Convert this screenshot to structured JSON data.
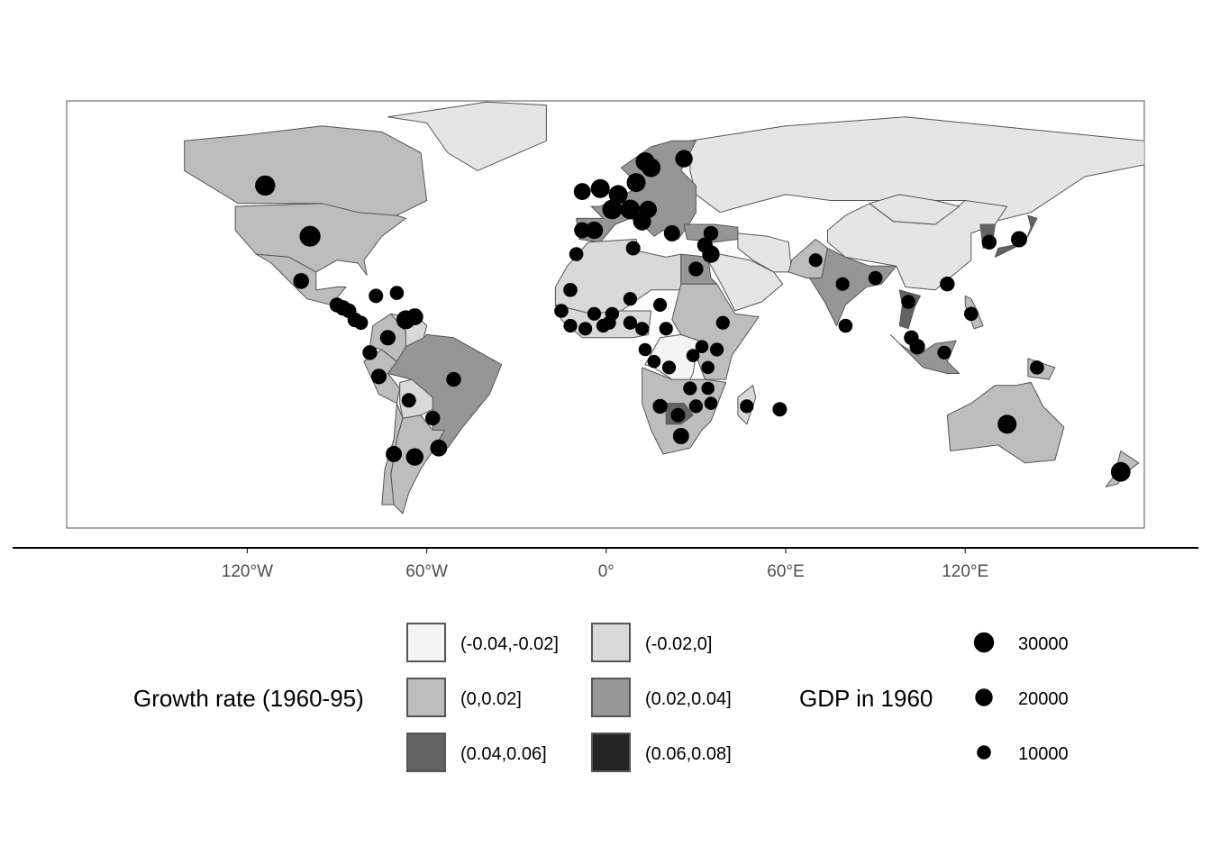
{
  "chart_data": {
    "type": "map",
    "projection": "equirectangular",
    "x_axis": {
      "ticks": [
        {
          "lon": -120,
          "label": "120°W"
        },
        {
          "lon": -60,
          "label": "60°W"
        },
        {
          "lon": 0,
          "label": "0°"
        },
        {
          "lon": 60,
          "label": "60°E"
        },
        {
          "lon": 120,
          "label": "120°E"
        }
      ]
    },
    "fill_legend": {
      "title": "Growth rate (1960-95)",
      "classes": [
        {
          "label": "(-0.04,-0.02]",
          "color": "#f4f4f4"
        },
        {
          "label": "(-0.02,0]",
          "color": "#d9d9d9"
        },
        {
          "label": "(0,0.02]",
          "color": "#bdbdbd"
        },
        {
          "label": "(0.02,0.04]",
          "color": "#969696"
        },
        {
          "label": "(0.04,0.06]",
          "color": "#636363"
        },
        {
          "label": "(0.06,0.08]",
          "color": "#252525"
        }
      ],
      "no_data_color": "#e5e5e5"
    },
    "size_legend": {
      "title": "GDP in 1960",
      "entries": [
        {
          "label": "30000",
          "value": 30000
        },
        {
          "label": "20000",
          "value": 20000
        },
        {
          "label": "10000",
          "value": 10000
        }
      ]
    },
    "regions": [
      {
        "name": "Russia",
        "growth_class": null
      },
      {
        "name": "Canada",
        "growth_class": "(0,0.02]"
      },
      {
        "name": "United States",
        "growth_class": "(0,0.02]"
      },
      {
        "name": "Mexico",
        "growth_class": "(0,0.02]"
      },
      {
        "name": "Brazil",
        "growth_class": "(0.02,0.04]"
      },
      {
        "name": "Argentina",
        "growth_class": "(0,0.02]"
      },
      {
        "name": "Bolivia",
        "growth_class": "(-0.02,0]"
      },
      {
        "name": "Peru",
        "growth_class": "(0,0.02]"
      },
      {
        "name": "Colombia",
        "growth_class": "(0,0.02]"
      },
      {
        "name": "Venezuela",
        "growth_class": "(-0.02,0]"
      },
      {
        "name": "Chile",
        "growth_class": "(0,0.02]"
      },
      {
        "name": "Greenland",
        "growth_class": null
      },
      {
        "name": "Western Europe",
        "growth_class": "(0.02,0.04]"
      },
      {
        "name": "North Africa",
        "growth_class": "(-0.02,0]"
      },
      {
        "name": "West Africa",
        "growth_class": "(-0.02,0]"
      },
      {
        "name": "Egypt",
        "growth_class": "(0.02,0.04]"
      },
      {
        "name": "Congo (DRC)",
        "growth_class": "(-0.04,-0.02]"
      },
      {
        "name": "East Africa",
        "growth_class": "(0,0.02]"
      },
      {
        "name": "Southern Africa",
        "growth_class": "(0,0.02]"
      },
      {
        "name": "Botswana",
        "growth_class": "(0.04,0.06]"
      },
      {
        "name": "Madagascar",
        "growth_class": "(-0.02,0]"
      },
      {
        "name": "Arabian Peninsula",
        "growth_class": null
      },
      {
        "name": "Turkey",
        "growth_class": "(0.02,0.04]"
      },
      {
        "name": "Iran",
        "growth_class": null
      },
      {
        "name": "Pakistan",
        "growth_class": "(0,0.02]"
      },
      {
        "name": "India",
        "growth_class": "(0.02,0.04]"
      },
      {
        "name": "China",
        "growth_class": null
      },
      {
        "name": "Mongolia",
        "growth_class": null
      },
      {
        "name": "Thailand",
        "growth_class": "(0.04,0.06]"
      },
      {
        "name": "Japan",
        "growth_class": "(0.04,0.06]"
      },
      {
        "name": "Korea",
        "growth_class": "(0.04,0.06]"
      },
      {
        "name": "Indonesia",
        "growth_class": "(0.02,0.04]"
      },
      {
        "name": "Philippines",
        "growth_class": "(0,0.02]"
      },
      {
        "name": "Papua New Guinea",
        "growth_class": "(0,0.02]"
      },
      {
        "name": "Australia",
        "growth_class": "(0,0.02]"
      },
      {
        "name": "New Zealand",
        "growth_class": "(0,0.02]"
      }
    ],
    "points": [
      {
        "lon": -114,
        "lat": 55,
        "gdp": 30000
      },
      {
        "lon": -99,
        "lat": 38,
        "gdp": 33000
      },
      {
        "lon": -102,
        "lat": 23,
        "gdp": 15000
      },
      {
        "lon": -90,
        "lat": 15,
        "gdp": 12000
      },
      {
        "lon": -88,
        "lat": 14,
        "gdp": 14000
      },
      {
        "lon": -86,
        "lat": 13,
        "gdp": 12000
      },
      {
        "lon": -84,
        "lat": 10,
        "gdp": 12000
      },
      {
        "lon": -82,
        "lat": 9,
        "gdp": 10000
      },
      {
        "lon": -77,
        "lat": 18,
        "gdp": 11000
      },
      {
        "lon": -70,
        "lat": 19,
        "gdp": 10000
      },
      {
        "lon": -67,
        "lat": 10,
        "gdp": 25000
      },
      {
        "lon": -64,
        "lat": 11,
        "gdp": 18000
      },
      {
        "lon": -73,
        "lat": 4,
        "gdp": 14000
      },
      {
        "lon": -79,
        "lat": -1,
        "gdp": 12000
      },
      {
        "lon": -76,
        "lat": -9,
        "gdp": 14000
      },
      {
        "lon": -66,
        "lat": -17,
        "gdp": 11000
      },
      {
        "lon": -58,
        "lat": -23,
        "gdp": 12000
      },
      {
        "lon": -51,
        "lat": -10,
        "gdp": 12000
      },
      {
        "lon": -56,
        "lat": -33,
        "gdp": 18000
      },
      {
        "lon": -71,
        "lat": -35,
        "gdp": 16000
      },
      {
        "lon": -64,
        "lat": -36,
        "gdp": 20000
      },
      {
        "lon": -8,
        "lat": 53,
        "gdp": 18000
      },
      {
        "lon": -2,
        "lat": 54,
        "gdp": 25000
      },
      {
        "lon": 4,
        "lat": 52,
        "gdp": 25000
      },
      {
        "lon": 2,
        "lat": 47,
        "gdp": 28000
      },
      {
        "lon": 8,
        "lat": 47,
        "gdp": 28000
      },
      {
        "lon": 10,
        "lat": 56,
        "gdp": 25000
      },
      {
        "lon": 13,
        "lat": 63,
        "gdp": 25000
      },
      {
        "lon": 15,
        "lat": 61,
        "gdp": 25000
      },
      {
        "lon": 26,
        "lat": 64,
        "gdp": 20000
      },
      {
        "lon": 14,
        "lat": 47,
        "gdp": 20000
      },
      {
        "lon": 12,
        "lat": 43,
        "gdp": 22000
      },
      {
        "lon": -8,
        "lat": 40,
        "gdp": 16000
      },
      {
        "lon": -4,
        "lat": 40,
        "gdp": 20000
      },
      {
        "lon": 22,
        "lat": 39,
        "gdp": 16000
      },
      {
        "lon": 35,
        "lat": 39,
        "gdp": 12000
      },
      {
        "lon": 35,
        "lat": 32,
        "gdp": 20000
      },
      {
        "lon": 33,
        "lat": 35,
        "gdp": 14000
      },
      {
        "lon": 9,
        "lat": 34,
        "gdp": 11000
      },
      {
        "lon": -10,
        "lat": 32,
        "gdp": 10000
      },
      {
        "lon": 30,
        "lat": 27,
        "gdp": 12000
      },
      {
        "lon": -12,
        "lat": 20,
        "gdp": 10000
      },
      {
        "lon": -15,
        "lat": 13,
        "gdp": 10000
      },
      {
        "lon": -12,
        "lat": 8,
        "gdp": 9000
      },
      {
        "lon": -7,
        "lat": 7,
        "gdp": 9000
      },
      {
        "lon": -4,
        "lat": 12,
        "gdp": 9000
      },
      {
        "lon": -1,
        "lat": 8,
        "gdp": 9000
      },
      {
        "lon": 1,
        "lat": 9,
        "gdp": 9000
      },
      {
        "lon": 2,
        "lat": 12,
        "gdp": 9000
      },
      {
        "lon": 8,
        "lat": 17,
        "gdp": 9000
      },
      {
        "lon": 8,
        "lat": 9,
        "gdp": 9000
      },
      {
        "lon": 12,
        "lat": 7,
        "gdp": 9000
      },
      {
        "lon": 18,
        "lat": 15,
        "gdp": 9000
      },
      {
        "lon": 13,
        "lat": 0,
        "gdp": 8000
      },
      {
        "lon": 21,
        "lat": -6,
        "gdp": 9000
      },
      {
        "lon": 20,
        "lat": 7,
        "gdp": 9000
      },
      {
        "lon": 16,
        "lat": -4,
        "gdp": 8000
      },
      {
        "lon": 32,
        "lat": 1,
        "gdp": 8000
      },
      {
        "lon": 29,
        "lat": -2,
        "gdp": 8000
      },
      {
        "lon": 34,
        "lat": -6,
        "gdp": 8000
      },
      {
        "lon": 37,
        "lat": 0,
        "gdp": 9000
      },
      {
        "lon": 39,
        "lat": 9,
        "gdp": 9000
      },
      {
        "lon": 28,
        "lat": -13,
        "gdp": 9000
      },
      {
        "lon": 34,
        "lat": -13,
        "gdp": 8000
      },
      {
        "lon": 18,
        "lat": -19,
        "gdp": 12000
      },
      {
        "lon": 24,
        "lat": -22,
        "gdp": 11000
      },
      {
        "lon": 30,
        "lat": -19,
        "gdp": 9000
      },
      {
        "lon": 35,
        "lat": -18,
        "gdp": 8000
      },
      {
        "lon": 25,
        "lat": -29,
        "gdp": 16000
      },
      {
        "lon": 47,
        "lat": -19,
        "gdp": 9000
      },
      {
        "lon": 58,
        "lat": -20,
        "gdp": 11000
      },
      {
        "lon": 70,
        "lat": 30,
        "gdp": 9000
      },
      {
        "lon": 79,
        "lat": 22,
        "gdp": 9000
      },
      {
        "lon": 90,
        "lat": 24,
        "gdp": 10000
      },
      {
        "lon": 80,
        "lat": 8,
        "gdp": 10000
      },
      {
        "lon": 101,
        "lat": 16,
        "gdp": 10000
      },
      {
        "lon": 102,
        "lat": 4,
        "gdp": 12000
      },
      {
        "lon": 104,
        "lat": 1,
        "gdp": 14000
      },
      {
        "lon": 113,
        "lat": -1,
        "gdp": 9000
      },
      {
        "lon": 114,
        "lat": 22,
        "gdp": 12000
      },
      {
        "lon": 122,
        "lat": 12,
        "gdp": 10000
      },
      {
        "lon": 128,
        "lat": 36,
        "gdp": 12000
      },
      {
        "lon": 144,
        "lat": -6,
        "gdp": 10000
      },
      {
        "lon": 134,
        "lat": -25,
        "gdp": 25000
      },
      {
        "lon": 138,
        "lat": 37,
        "gdp": 16000
      },
      {
        "lon": 172,
        "lat": -41,
        "gdp": 28000
      }
    ]
  }
}
